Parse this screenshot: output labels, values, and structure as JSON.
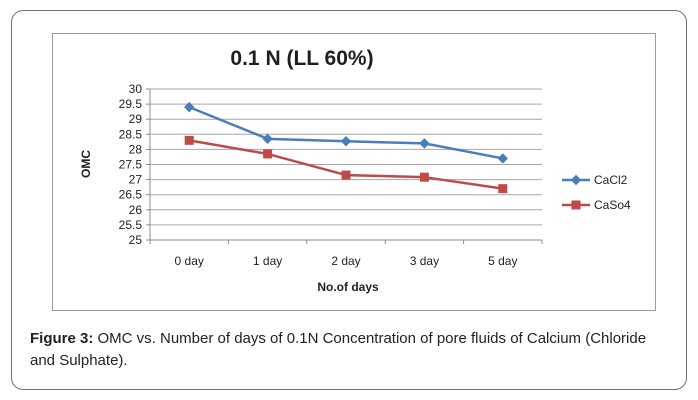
{
  "chart_data": {
    "type": "line",
    "title": "0.1 N (LL 60%)",
    "xlabel": "No.of days",
    "ylabel": "OMC",
    "categories": [
      "0 day",
      "1 day",
      "2 day",
      "3 day",
      "5 day"
    ],
    "ylim": [
      25,
      30
    ],
    "ytick_step": 0.5,
    "ytick_labels": [
      "25",
      "25.5",
      "26",
      "26.5",
      "27",
      "27.5",
      "28",
      "28.5",
      "29",
      "29.5",
      "30"
    ],
    "grid": true,
    "legend_position": "right",
    "series": [
      {
        "name": "CaCl2",
        "color": "#4a7ebb",
        "marker": "diamond",
        "values": [
          29.4,
          28.35,
          28.27,
          28.2,
          27.7
        ]
      },
      {
        "name": "CaSo4",
        "color": "#be4b48",
        "marker": "square",
        "values": [
          28.3,
          27.85,
          27.15,
          27.08,
          26.7
        ]
      }
    ]
  },
  "caption": {
    "label": "Figure 3:",
    "text": " OMC vs. Number of days of 0.1N Concentration of pore fluids of Calcium (Chloride and Sulphate)."
  }
}
